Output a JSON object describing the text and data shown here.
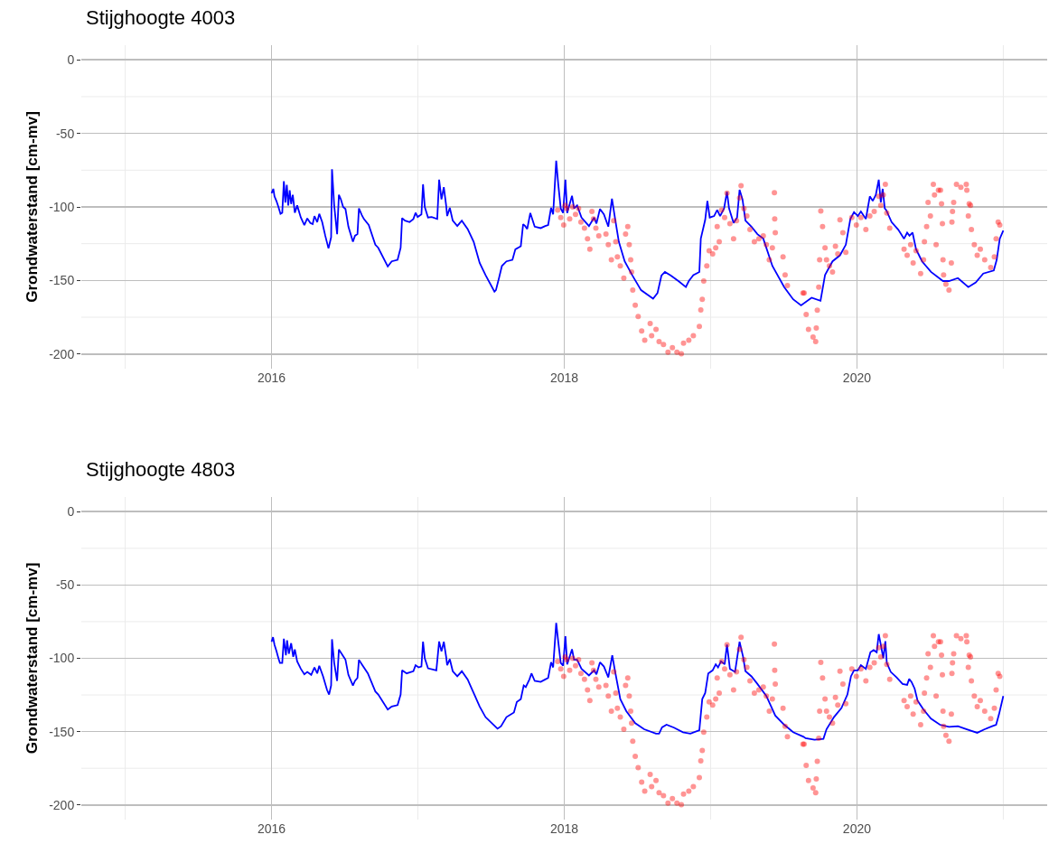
{
  "chart_data": [
    {
      "type": "line",
      "title": "Stijghoogte 4003",
      "ylabel": "Grondwaterstand [cm-mv]",
      "xlim": [
        2014.7,
        2021.3
      ],
      "ylim": [
        -210,
        10
      ],
      "xticks": [
        {
          "value": 2015,
          "label": null
        },
        2016,
        {
          "value": 2017,
          "label": null
        },
        2018,
        {
          "value": 2019,
          "label": null
        },
        2020,
        {
          "value": 2021,
          "label": null
        }
      ],
      "yticks": [
        {
          "value": -200,
          "label": "-200"
        },
        {
          "value": -175,
          "label": null
        },
        {
          "value": -150,
          "label": "-150"
        },
        {
          "value": -125,
          "label": null
        },
        {
          "value": -100,
          "label": "-100"
        },
        {
          "value": -75,
          "label": null
        },
        {
          "value": -50,
          "label": "-50"
        },
        {
          "value": -25,
          "label": null
        },
        0
      ],
      "grid": true,
      "series": [
        {
          "color": "#0000ff",
          "line_style": "solid",
          "x": [
            2016.0,
            2016.012,
            2016.02,
            2016.033,
            2016.047,
            2016.061,
            2016.073,
            2016.084,
            2016.094,
            2016.104,
            2016.114,
            2016.124,
            2016.134,
            2016.145,
            2016.159,
            2016.175,
            2016.2,
            2016.224,
            2016.244,
            2016.265,
            2016.281,
            2016.293,
            2016.312,
            2016.326,
            2016.346,
            2016.367,
            2016.389,
            2016.407,
            2016.413,
            2016.428,
            2016.448,
            2016.46,
            2016.474,
            2016.489,
            2016.505,
            2016.525,
            2016.556,
            2016.57,
            2016.587,
            2016.597,
            2016.617,
            2016.631,
            2016.664,
            2016.709,
            2016.729,
            2016.794,
            2016.821,
            2016.861,
            2016.882,
            2016.892,
            2016.912,
            2016.943,
            2016.969,
            2016.984,
            2016.998,
            2017.024,
            2017.035,
            2017.047,
            2017.069,
            2017.094,
            2017.132,
            2017.145,
            2017.161,
            2017.177,
            2017.193,
            2017.2,
            2017.218,
            2017.238,
            2017.269,
            2017.3,
            2017.34,
            2017.381,
            2017.422,
            2017.462,
            2017.523,
            2017.533,
            2017.554,
            2017.574,
            2017.605,
            2017.646,
            2017.666,
            2017.703,
            2017.719,
            2017.733,
            2017.747,
            2017.768,
            2017.798,
            2017.839,
            2017.87,
            2017.89,
            2017.91,
            2017.924,
            2017.945,
            2017.959,
            2017.976,
            2017.992,
            2018.008,
            2018.02,
            2018.053,
            2018.067,
            2018.088,
            2018.118,
            2018.169,
            2018.204,
            2018.22,
            2018.244,
            2018.271,
            2018.301,
            2018.326,
            2018.346,
            2018.373,
            2018.413,
            2018.464,
            2018.525,
            2018.607,
            2018.637,
            2018.664,
            2018.688,
            2018.729,
            2018.78,
            2018.831,
            2018.851,
            2018.882,
            2018.923,
            2018.933,
            2018.963,
            2018.978,
            2018.994,
            2019.024,
            2019.045,
            2019.065,
            2019.092,
            2019.112,
            2019.126,
            2019.157,
            2019.181,
            2019.198,
            2019.218,
            2019.238,
            2019.279,
            2019.32,
            2019.36,
            2019.422,
            2019.503,
            2019.564,
            2019.618,
            2019.69,
            2019.751,
            2019.782,
            2019.833,
            2019.884,
            2019.924,
            2019.955,
            2019.98,
            2020.006,
            2020.027,
            2020.061,
            2020.088,
            2020.108,
            2020.129,
            2020.149,
            2020.163,
            2020.176,
            2020.19,
            2020.2,
            2020.237,
            2020.282,
            2020.322,
            2020.343,
            2020.359,
            2020.38,
            2020.404,
            2020.445,
            2020.506,
            2020.588,
            2020.629,
            2020.69,
            2020.761,
            2020.812,
            2020.863,
            2020.935,
            2020.955,
            2020.976,
            2021.0
          ],
          "values": [
            -90.7,
            -87.7,
            -92.8,
            -95.9,
            -100,
            -104.7,
            -104,
            -82.5,
            -97,
            -85,
            -99,
            -88.7,
            -98,
            -91.8,
            -104,
            -99,
            -107.2,
            -112.3,
            -107.8,
            -110.9,
            -111.7,
            -106.2,
            -110.3,
            -104.7,
            -110.3,
            -119.6,
            -128.2,
            -120.6,
            -74.3,
            -99,
            -118.5,
            -91.8,
            -94.9,
            -100,
            -101.4,
            -113.4,
            -123.7,
            -119.6,
            -118.5,
            -101,
            -105.6,
            -108.2,
            -112.3,
            -125.7,
            -127.8,
            -140.5,
            -137,
            -136,
            -127.8,
            -107.6,
            -109.3,
            -110.3,
            -108.2,
            -104,
            -106.8,
            -105.1,
            -84.6,
            -100,
            -107.2,
            -106.8,
            -108.2,
            -81.5,
            -94.9,
            -86.6,
            -99,
            -106.2,
            -100.6,
            -109.3,
            -113,
            -109.3,
            -115,
            -123.7,
            -138.1,
            -146.3,
            -157.6,
            -156.6,
            -148.4,
            -140.1,
            -137,
            -136,
            -128.8,
            -126.7,
            -111.7,
            -113,
            -115,
            -104.1,
            -113.4,
            -114.4,
            -113,
            -112.3,
            -100.6,
            -105.1,
            -68.5,
            -84.6,
            -101,
            -104.1,
            -81.5,
            -104.1,
            -92.4,
            -101,
            -99,
            -107.2,
            -113,
            -107.2,
            -111.3,
            -101.4,
            -105.1,
            -113.4,
            -94.4,
            -107.2,
            -123.7,
            -137,
            -146.3,
            -156.6,
            -162.4,
            -158.6,
            -146.7,
            -144.2,
            -146.7,
            -150.4,
            -154.5,
            -150.4,
            -146.3,
            -144.2,
            -121.6,
            -108.8,
            -95.9,
            -107.2,
            -106.2,
            -102.1,
            -106.2,
            -101,
            -89.7,
            -101,
            -110.9,
            -107.2,
            -88.3,
            -94.9,
            -109.3,
            -113.4,
            -118.5,
            -121.6,
            -140.1,
            -154.5,
            -162.8,
            -166.9,
            -161.7,
            -163.8,
            -146.3,
            -137,
            -132.9,
            -125.7,
            -108.2,
            -103.5,
            -106.2,
            -103.1,
            -108.2,
            -92.8,
            -95.9,
            -91.8,
            -81.5,
            -96.9,
            -87.7,
            -101,
            -102.1,
            -110.3,
            -115.4,
            -121.6,
            -117.5,
            -119.6,
            -117.5,
            -128.8,
            -137,
            -144.2,
            -150.4,
            -150.4,
            -148.4,
            -154.5,
            -151.4,
            -145.3,
            -143.2,
            -136,
            -121.6,
            -116
          ]
        },
        {
          "type": "scatter",
          "color": "#ff0000",
          "marker": "circle",
          "x": [
            2017.955,
            2017.976,
            2017.996,
            2018.006,
            2018.016,
            2018.037,
            2018.057,
            2018.077,
            2018.098,
            2018.114,
            2018.138,
            2018.159,
            2018.175,
            2018.189,
            2018.2,
            2018.216,
            2018.236,
            2018.285,
            2018.301,
            2018.322,
            2018.338,
            2018.352,
            2018.363,
            2018.383,
            2018.407,
            2018.419,
            2018.434,
            2018.444,
            2018.454,
            2018.46,
            2018.468,
            2018.485,
            2018.505,
            2018.529,
            2018.55,
            2018.587,
            2018.597,
            2018.627,
            2018.648,
            2018.678,
            2018.709,
            2018.739,
            2018.77,
            2018.8,
            2018.815,
            2018.851,
            2018.882,
            2018.923,
            2018.933,
            2018.943,
            2018.953,
            2018.974,
            2018.99,
            2019.014,
            2019.035,
            2019.045,
            2019.059,
            2019.075,
            2019.096,
            2019.112,
            2019.132,
            2019.157,
            2019.177,
            2019.198,
            2019.208,
            2019.228,
            2019.248,
            2019.269,
            2019.299,
            2019.33,
            2019.36,
            2019.381,
            2019.401,
            2019.422,
            2019.436,
            2019.438,
            2019.442,
            2019.495,
            2019.509,
            2019.525,
            2019.631,
            2019.639,
            2019.653,
            2019.669,
            2019.7,
            2019.718,
            2019.722,
            2019.729,
            2019.739,
            2019.745,
            2019.753,
            2019.765,
            2019.782,
            2019.792,
            2019.812,
            2019.833,
            2019.853,
            2019.869,
            2019.884,
            2019.904,
            2019.924,
            2019.965,
            2019.996,
            2020.027,
            2020.061,
            2020.088,
            2020.118,
            2020.149,
            2020.163,
            2020.18,
            2020.194,
            2020.204,
            2020.224,
            2020.322,
            2020.343,
            2020.367,
            2020.384,
            2020.404,
            2020.435,
            2020.455,
            2020.461,
            2020.476,
            2020.486,
            2020.502,
            2020.522,
            2020.53,
            2020.541,
            2020.557,
            2020.571,
            2020.578,
            2020.584,
            2020.588,
            2020.592,
            2020.608,
            2020.629,
            2020.645,
            2020.649,
            2020.653,
            2020.661,
            2020.68,
            2020.71,
            2020.747,
            2020.751,
            2020.761,
            2020.767,
            2020.776,
            2020.782,
            2020.802,
            2020.822,
            2020.843,
            2020.873,
            2020.914,
            2020.939,
            2020.951,
            2020.965,
            2020.976
          ],
          "values": [
            -102.1,
            -107.2,
            -112.3,
            -99,
            -101,
            -108.2,
            -100,
            -105.1,
            -101,
            -110.3,
            -114.4,
            -121.6,
            -128.8,
            -103.1,
            -108.2,
            -114.4,
            -119.6,
            -118.5,
            -125.7,
            -136,
            -109.3,
            -123.7,
            -134,
            -140.1,
            -148.4,
            -118.5,
            -113.4,
            -125.7,
            -136,
            -144.2,
            -156.6,
            -166.9,
            -174.5,
            -184.4,
            -190.6,
            -179.2,
            -187.5,
            -183.3,
            -191.6,
            -193.6,
            -198.8,
            -195.7,
            -198.8,
            -199.8,
            -192.6,
            -190.6,
            -187.5,
            -181.3,
            -170,
            -162.8,
            -150.4,
            -140.1,
            -129.8,
            -131.9,
            -127.8,
            -113.4,
            -123.7,
            -102.1,
            -107.2,
            -90.7,
            -111.3,
            -121.6,
            -109.3,
            -93.8,
            -85.6,
            -101,
            -106.2,
            -115.4,
            -123.7,
            -121.6,
            -119.6,
            -125.7,
            -136,
            -127.8,
            -90.3,
            -108.2,
            -117.5,
            -134,
            -146.3,
            -153.5,
            -158.6,
            -158.6,
            -173.1,
            -183.3,
            -188.5,
            -191.6,
            -182.3,
            -170.2,
            -154.5,
            -136,
            -102.7,
            -113.4,
            -127.8,
            -136,
            -140.1,
            -144.2,
            -126.7,
            -131.9,
            -108.8,
            -117.5,
            -130.9,
            -107.2,
            -112.3,
            -107.2,
            -115.4,
            -106.2,
            -103.1,
            -92.8,
            -99,
            -91.8,
            -84.6,
            -104.1,
            -114.4,
            -128.8,
            -132.9,
            -125.7,
            -138.1,
            -129.8,
            -145.3,
            -136,
            -123.7,
            -113.4,
            -96.9,
            -106.2,
            -84.6,
            -91.8,
            -125.7,
            -88.7,
            -88.7,
            -97.9,
            -111.3,
            -136,
            -146.3,
            -152.5,
            -156.6,
            -138.1,
            -110.3,
            -103.1,
            -96.9,
            -84.6,
            -86.6,
            -84.6,
            -88.7,
            -106.2,
            -97.9,
            -99,
            -115.4,
            -125.7,
            -132.9,
            -128.8,
            -136,
            -141.2,
            -134,
            -121.6,
            -110.3,
            -112.3
          ]
        }
      ]
    },
    {
      "type": "line",
      "title": "Stijghoogte 4803",
      "ylabel": "Grondwaterstand [cm-mv]",
      "xlim": [
        2014.7,
        2021.3
      ],
      "ylim": [
        -210,
        10
      ],
      "xticks": [
        {
          "value": 2015,
          "label": null
        },
        2016,
        {
          "value": 2017,
          "label": null
        },
        2018,
        {
          "value": 2019,
          "label": null
        },
        2020,
        {
          "value": 2021,
          "label": null
        }
      ],
      "yticks": [
        {
          "value": -200,
          "label": "-200"
        },
        {
          "value": -175,
          "label": null
        },
        {
          "value": -150,
          "label": "-150"
        },
        {
          "value": -125,
          "label": null
        },
        {
          "value": -100,
          "label": "-100"
        },
        {
          "value": -75,
          "label": null
        },
        {
          "value": -50,
          "label": "-50"
        },
        {
          "value": -25,
          "label": null
        },
        0
      ],
      "grid": true,
      "series": [
        {
          "color": "#0000ff",
          "line_style": "solid",
          "x": [
            2016.0,
            2016.01,
            2016.02,
            2016.033,
            2016.047,
            2016.057,
            2016.073,
            2016.084,
            2016.098,
            2016.106,
            2016.118,
            2016.134,
            2016.148,
            2016.159,
            2016.175,
            2016.2,
            2016.224,
            2016.244,
            2016.271,
            2016.293,
            2016.312,
            2016.326,
            2016.352,
            2016.379,
            2016.393,
            2016.407,
            2016.413,
            2016.428,
            2016.448,
            2016.46,
            2016.474,
            2016.505,
            2016.525,
            2016.556,
            2016.57,
            2016.587,
            2016.597,
            2016.617,
            2016.658,
            2016.709,
            2016.729,
            2016.794,
            2016.821,
            2016.861,
            2016.882,
            2016.892,
            2016.923,
            2016.969,
            2016.984,
            2017.004,
            2017.024,
            2017.035,
            2017.047,
            2017.069,
            2017.126,
            2017.145,
            2017.161,
            2017.177,
            2017.193,
            2017.2,
            2017.218,
            2017.238,
            2017.269,
            2017.3,
            2017.34,
            2017.381,
            2017.422,
            2017.462,
            2017.544,
            2017.568,
            2017.605,
            2017.656,
            2017.676,
            2017.703,
            2017.723,
            2017.737,
            2017.762,
            2017.776,
            2017.798,
            2017.839,
            2017.87,
            2017.89,
            2017.91,
            2017.924,
            2017.945,
            2017.959,
            2017.976,
            2017.992,
            2018.008,
            2018.02,
            2018.053,
            2018.067,
            2018.088,
            2018.118,
            2018.169,
            2018.204,
            2018.22,
            2018.244,
            2018.271,
            2018.301,
            2018.328,
            2018.346,
            2018.383,
            2018.424,
            2018.485,
            2018.546,
            2018.627,
            2018.648,
            2018.668,
            2018.699,
            2018.75,
            2018.811,
            2018.862,
            2018.923,
            2018.943,
            2018.963,
            2018.984,
            2019.014,
            2019.035,
            2019.051,
            2019.071,
            2019.096,
            2019.112,
            2019.132,
            2019.167,
            2019.198,
            2019.222,
            2019.238,
            2019.279,
            2019.32,
            2019.381,
            2019.442,
            2019.503,
            2019.564,
            2019.635,
            2019.649,
            2019.71,
            2019.771,
            2019.792,
            2019.843,
            2019.894,
            2019.935,
            2019.959,
            2019.98,
            2020.006,
            2020.027,
            2020.061,
            2020.092,
            2020.114,
            2020.135,
            2020.149,
            2020.163,
            2020.18,
            2020.194,
            2020.204,
            2020.231,
            2020.271,
            2020.312,
            2020.343,
            2020.357,
            2020.373,
            2020.394,
            2020.414,
            2020.455,
            2020.506,
            2020.567,
            2020.629,
            2020.69,
            2020.751,
            2020.822,
            2020.873,
            2020.924,
            2020.951,
            2020.971,
            2021.0
          ],
          "values": [
            -88.7,
            -85.6,
            -90.7,
            -94.9,
            -100,
            -103.1,
            -103.1,
            -86.6,
            -98,
            -87.7,
            -96.9,
            -89.7,
            -99,
            -94,
            -102.1,
            -107.2,
            -110.9,
            -109.3,
            -111.3,
            -106.2,
            -110.3,
            -105.1,
            -112.3,
            -121.6,
            -124.7,
            -118.5,
            -87,
            -103.1,
            -115.4,
            -94,
            -96.1,
            -101,
            -111.3,
            -118.5,
            -115.4,
            -113.4,
            -101,
            -104.1,
            -110.3,
            -122.6,
            -124.7,
            -135,
            -132.9,
            -131.9,
            -124.7,
            -108.2,
            -110.3,
            -108.8,
            -104.7,
            -106.2,
            -105.6,
            -88.7,
            -100,
            -106.8,
            -108.2,
            -88.5,
            -95.3,
            -88.7,
            -99,
            -104.7,
            -100.6,
            -108.8,
            -112.3,
            -108.8,
            -114.4,
            -123.7,
            -132.9,
            -140.1,
            -148,
            -146.3,
            -140.1,
            -137,
            -129.8,
            -127.8,
            -118.5,
            -119.6,
            -114.4,
            -110.3,
            -115.4,
            -116.1,
            -114.4,
            -113.4,
            -102.7,
            -106.2,
            -75.9,
            -88.7,
            -103.1,
            -105.1,
            -85,
            -104.1,
            -93.8,
            -101,
            -101,
            -107.2,
            -111.7,
            -108.2,
            -110.9,
            -102.7,
            -105.6,
            -113,
            -98,
            -108.2,
            -127.8,
            -136,
            -144.2,
            -148.4,
            -151.4,
            -151.4,
            -147.1,
            -145.3,
            -147.3,
            -150.4,
            -151.4,
            -149,
            -127.8,
            -123.7,
            -110.3,
            -108.2,
            -104.1,
            -106.2,
            -102.1,
            -104.1,
            -90.7,
            -107.2,
            -109.3,
            -88.7,
            -99,
            -108.8,
            -112.3,
            -117.5,
            -125.7,
            -139.1,
            -145.3,
            -150.4,
            -153.5,
            -154.5,
            -155.5,
            -154.9,
            -148.4,
            -140.1,
            -133.9,
            -124.7,
            -112.3,
            -108.2,
            -108.2,
            -104.7,
            -107.2,
            -95.9,
            -94.4,
            -95.9,
            -83.5,
            -90.7,
            -100,
            -88.3,
            -103.1,
            -109.3,
            -113,
            -117.5,
            -118.1,
            -114,
            -116.1,
            -120.6,
            -128.8,
            -135,
            -141.2,
            -145.3,
            -146.7,
            -146.3,
            -148.4,
            -150.8,
            -148.4,
            -146.3,
            -145.3,
            -138.1,
            -125.7
          ]
        },
        {
          "type": "scatter",
          "color": "#ff0000",
          "marker": "circle",
          "x": [
            2017.955,
            2017.976,
            2017.996,
            2018.006,
            2018.016,
            2018.037,
            2018.057,
            2018.077,
            2018.098,
            2018.114,
            2018.138,
            2018.159,
            2018.175,
            2018.189,
            2018.2,
            2018.216,
            2018.236,
            2018.285,
            2018.301,
            2018.322,
            2018.338,
            2018.352,
            2018.363,
            2018.383,
            2018.407,
            2018.419,
            2018.434,
            2018.444,
            2018.454,
            2018.46,
            2018.468,
            2018.485,
            2018.505,
            2018.529,
            2018.55,
            2018.587,
            2018.597,
            2018.627,
            2018.648,
            2018.678,
            2018.709,
            2018.739,
            2018.77,
            2018.8,
            2018.815,
            2018.851,
            2018.882,
            2018.923,
            2018.933,
            2018.943,
            2018.953,
            2018.974,
            2018.99,
            2019.014,
            2019.035,
            2019.045,
            2019.059,
            2019.075,
            2019.096,
            2019.112,
            2019.132,
            2019.157,
            2019.177,
            2019.198,
            2019.208,
            2019.228,
            2019.248,
            2019.269,
            2019.299,
            2019.33,
            2019.36,
            2019.381,
            2019.401,
            2019.422,
            2019.436,
            2019.438,
            2019.442,
            2019.495,
            2019.509,
            2019.525,
            2019.631,
            2019.639,
            2019.653,
            2019.669,
            2019.7,
            2019.718,
            2019.722,
            2019.729,
            2019.739,
            2019.745,
            2019.753,
            2019.765,
            2019.782,
            2019.792,
            2019.812,
            2019.833,
            2019.853,
            2019.869,
            2019.884,
            2019.904,
            2019.924,
            2019.965,
            2019.996,
            2020.027,
            2020.061,
            2020.088,
            2020.118,
            2020.149,
            2020.163,
            2020.18,
            2020.194,
            2020.204,
            2020.224,
            2020.322,
            2020.343,
            2020.367,
            2020.384,
            2020.404,
            2020.435,
            2020.455,
            2020.461,
            2020.476,
            2020.486,
            2020.502,
            2020.522,
            2020.53,
            2020.541,
            2020.557,
            2020.571,
            2020.578,
            2020.584,
            2020.588,
            2020.592,
            2020.608,
            2020.629,
            2020.645,
            2020.649,
            2020.653,
            2020.661,
            2020.68,
            2020.71,
            2020.747,
            2020.751,
            2020.761,
            2020.767,
            2020.776,
            2020.782,
            2020.802,
            2020.822,
            2020.843,
            2020.873,
            2020.914,
            2020.939,
            2020.951,
            2020.965,
            2020.976
          ],
          "values": [
            -102.1,
            -107.2,
            -112.3,
            -99,
            -101,
            -108.2,
            -100,
            -105.1,
            -101,
            -110.3,
            -114.4,
            -121.6,
            -128.8,
            -103.1,
            -108.2,
            -114.4,
            -119.6,
            -118.5,
            -125.7,
            -136,
            -109.3,
            -123.7,
            -134,
            -140.1,
            -148.4,
            -118.5,
            -113.4,
            -125.7,
            -136,
            -144.2,
            -156.6,
            -166.9,
            -174.5,
            -184.4,
            -190.6,
            -179.2,
            -187.5,
            -183.3,
            -191.6,
            -193.6,
            -198.8,
            -195.7,
            -198.8,
            -199.8,
            -192.6,
            -190.6,
            -187.5,
            -181.3,
            -170,
            -162.8,
            -150.4,
            -140.1,
            -129.8,
            -131.9,
            -127.8,
            -113.4,
            -123.7,
            -102.1,
            -107.2,
            -90.7,
            -111.3,
            -121.6,
            -109.3,
            -93.8,
            -85.6,
            -101,
            -106.2,
            -115.4,
            -123.7,
            -121.6,
            -119.6,
            -125.7,
            -136,
            -127.8,
            -90.3,
            -108.2,
            -117.5,
            -134,
            -146.3,
            -153.5,
            -158.6,
            -158.6,
            -173.1,
            -183.3,
            -188.5,
            -191.6,
            -182.3,
            -170.2,
            -154.5,
            -136,
            -102.7,
            -113.4,
            -127.8,
            -136,
            -140.1,
            -144.2,
            -126.7,
            -131.9,
            -108.8,
            -117.5,
            -130.9,
            -107.2,
            -112.3,
            -107.2,
            -115.4,
            -106.2,
            -103.1,
            -92.8,
            -99,
            -91.8,
            -84.6,
            -104.1,
            -114.4,
            -128.8,
            -132.9,
            -125.7,
            -138.1,
            -129.8,
            -145.3,
            -136,
            -123.7,
            -113.4,
            -96.9,
            -106.2,
            -84.6,
            -91.8,
            -125.7,
            -88.7,
            -88.7,
            -97.9,
            -111.3,
            -136,
            -146.3,
            -152.5,
            -156.6,
            -138.1,
            -110.3,
            -103.1,
            -96.9,
            -84.6,
            -86.6,
            -84.6,
            -88.7,
            -106.2,
            -97.9,
            -99,
            -115.4,
            -125.7,
            -132.9,
            -128.8,
            -136,
            -141.2,
            -134,
            -121.6,
            -110.3,
            -112.3
          ]
        }
      ]
    }
  ]
}
